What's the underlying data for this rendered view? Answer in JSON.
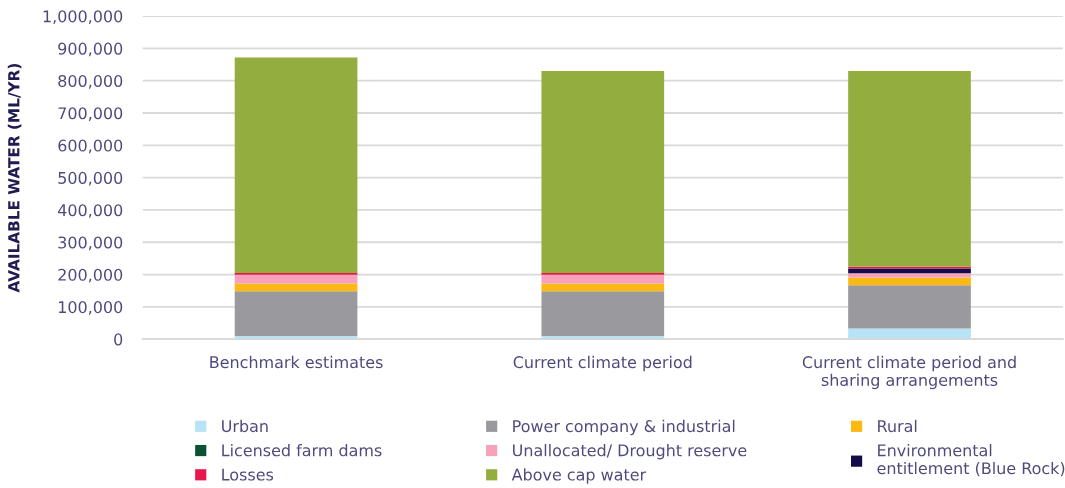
{
  "chart_data": {
    "type": "bar",
    "stacked": true,
    "ylabel": "AVAILABLE WATER (ML/YR)",
    "categories": [
      "Benchmark estimates",
      "Current climate period",
      "Current climate period and\nsharing arrangements"
    ],
    "series": [
      {
        "name": "Urban",
        "color": "#b7e3f6",
        "values": [
          10000,
          10000,
          33000
        ]
      },
      {
        "name": "Power company & industrial",
        "color": "#9a999e",
        "values": [
          138000,
          138000,
          134000
        ]
      },
      {
        "name": "Rural",
        "color": "#fdb913",
        "values": [
          24000,
          24000,
          24000
        ]
      },
      {
        "name": "Licensed farm dams",
        "color": "#0b5133",
        "values": [
          null,
          null,
          null
        ]
      },
      {
        "name": "Unallocated/ Drought reserve",
        "color": "#f6a2bb",
        "values": [
          27000,
          27000,
          13000
        ]
      },
      {
        "name": "Environmental\nentitlement (Blue Rock)",
        "color": "#120d4a",
        "values": [
          null,
          null,
          15000
        ]
      },
      {
        "name": "Losses",
        "color": "#e8174a",
        "values": [
          6000,
          6000,
          5000
        ]
      },
      {
        "name": "Above cap water",
        "color": "#93ae3e",
        "values": [
          667000,
          625000,
          606000
        ]
      }
    ],
    "ylim": [
      0,
      1000000
    ],
    "yticks": [
      0,
      {
        "value": 100000,
        "label": "100,000"
      },
      {
        "value": 200000,
        "label": "200,000"
      },
      {
        "value": 300000,
        "label": "300,000"
      },
      {
        "value": 400000,
        "label": "400,000"
      },
      {
        "value": 500000,
        "label": "500,000"
      },
      {
        "value": 600000,
        "label": "600,000"
      },
      {
        "value": 700000,
        "label": "700,000"
      },
      {
        "value": 800000,
        "label": "800,000"
      },
      {
        "value": 900000,
        "label": "900,000"
      },
      {
        "value": 1000000,
        "label": "1,000,000"
      }
    ],
    "grid": "y",
    "legend": "bottom"
  }
}
